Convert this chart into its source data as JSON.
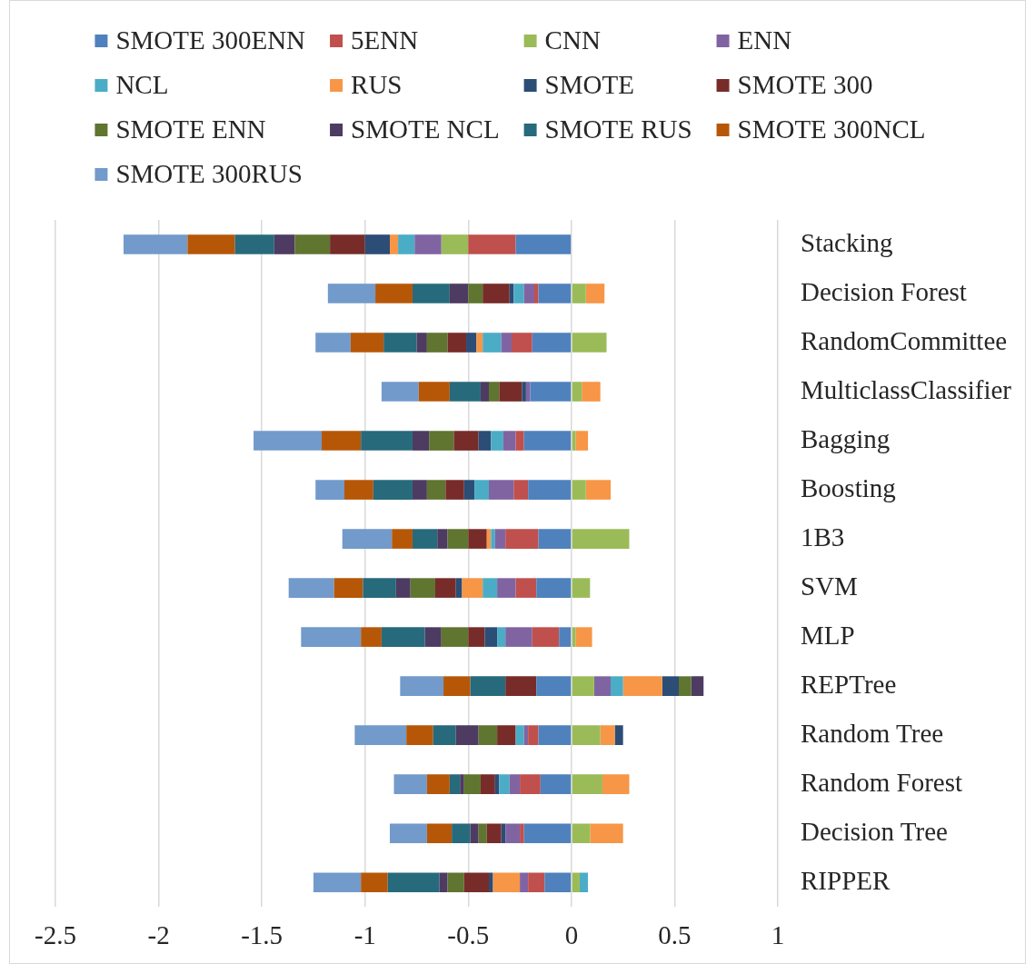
{
  "chart_data": {
    "type": "bar",
    "orientation": "horizontal",
    "stacked": true,
    "legend": "top",
    "grid": "x",
    "categories": [
      "Stacking",
      "Decision Forest",
      "RandomCommittee",
      "MulticlassClassifier",
      "Bagging",
      "Boosting",
      "1B3",
      "SVM",
      "MLP",
      "REPTree",
      "Random Tree",
      "Random Forest",
      "Decision Tree",
      "RIPPER"
    ],
    "xlim": [
      -2.5,
      1
    ],
    "xticks": [
      -2.5,
      -2,
      -1.5,
      -1,
      -0.5,
      0,
      0.5,
      1
    ],
    "series": [
      {
        "name": "SMOTE 300ENN",
        "color": "#4f81bd",
        "values": [
          -0.27,
          -0.16,
          -0.19,
          -0.2,
          -0.23,
          -0.21,
          -0.16,
          -0.17,
          -0.06,
          -0.17,
          -0.16,
          -0.15,
          -0.23,
          -0.13
        ]
      },
      {
        "name": "5ENN",
        "color": "#c0504d",
        "values": [
          -0.23,
          -0.02,
          -0.1,
          null,
          -0.04,
          -0.07,
          -0.16,
          -0.1,
          -0.13,
          null,
          -0.05,
          -0.1,
          -0.02,
          -0.08
        ]
      },
      {
        "name": "CNN",
        "color": "#9bbb59",
        "values": [
          -0.13,
          0.07,
          0.17,
          0.05,
          0.02,
          0.07,
          0.28,
          0.09,
          0.02,
          0.11,
          0.14,
          0.15,
          0.09,
          0.04
        ]
      },
      {
        "name": "ENN",
        "color": "#8064a2",
        "values": [
          -0.13,
          -0.05,
          -0.05,
          -0.02,
          -0.06,
          -0.12,
          -0.05,
          -0.09,
          -0.13,
          0.08,
          -0.02,
          -0.05,
          -0.07,
          -0.04
        ]
      },
      {
        "name": "NCL",
        "color": "#4bacc6",
        "values": [
          -0.08,
          -0.05,
          -0.09,
          null,
          -0.06,
          -0.07,
          -0.02,
          -0.07,
          -0.04,
          0.06,
          -0.04,
          -0.05,
          null,
          0.04
        ]
      },
      {
        "name": "RUS",
        "color": "#f79646",
        "values": [
          -0.04,
          0.09,
          -0.03,
          0.09,
          0.06,
          0.12,
          -0.02,
          -0.1,
          0.08,
          0.19,
          0.07,
          0.13,
          0.16,
          -0.13
        ]
      },
      {
        "name": "SMOTE",
        "color": "#2c4d75",
        "values": [
          -0.12,
          -0.02,
          -0.05,
          -0.02,
          -0.06,
          -0.05,
          null,
          -0.03,
          -0.06,
          0.08,
          0.04,
          -0.02,
          -0.02,
          -0.02
        ]
      },
      {
        "name": "SMOTE 300",
        "color": "#772c2a",
        "values": [
          -0.17,
          -0.13,
          -0.09,
          -0.11,
          -0.12,
          -0.09,
          -0.09,
          -0.1,
          -0.08,
          -0.15,
          -0.09,
          -0.07,
          -0.07,
          -0.12
        ]
      },
      {
        "name": "SMOTE ENN",
        "color": "#5f7530",
        "values": [
          -0.17,
          -0.07,
          -0.1,
          -0.05,
          -0.12,
          -0.09,
          -0.1,
          -0.12,
          -0.13,
          0.06,
          -0.09,
          -0.08,
          -0.04,
          -0.08
        ]
      },
      {
        "name": "SMOTE NCL",
        "color": "#4d3b62",
        "values": [
          -0.1,
          -0.09,
          -0.05,
          -0.04,
          -0.08,
          -0.07,
          -0.05,
          -0.07,
          -0.08,
          0.06,
          -0.11,
          -0.02,
          -0.04,
          -0.04
        ]
      },
      {
        "name": "SMOTE RUS",
        "color": "#276a7c",
        "values": [
          -0.19,
          -0.18,
          -0.16,
          -0.15,
          -0.25,
          -0.19,
          -0.12,
          -0.16,
          -0.21,
          -0.17,
          -0.11,
          -0.05,
          -0.09,
          -0.25
        ]
      },
      {
        "name": "SMOTE 300NCL",
        "color": "#b65708",
        "values": [
          -0.23,
          -0.18,
          -0.16,
          -0.15,
          -0.19,
          -0.14,
          -0.1,
          -0.14,
          -0.1,
          -0.13,
          -0.13,
          -0.11,
          -0.12,
          -0.13
        ]
      },
      {
        "name": "SMOTE 300RUS",
        "color": "#729aca",
        "values": [
          -0.31,
          -0.23,
          -0.17,
          -0.18,
          -0.33,
          -0.14,
          -0.24,
          -0.22,
          -0.29,
          -0.21,
          -0.25,
          -0.16,
          -0.18,
          -0.23
        ]
      }
    ]
  }
}
